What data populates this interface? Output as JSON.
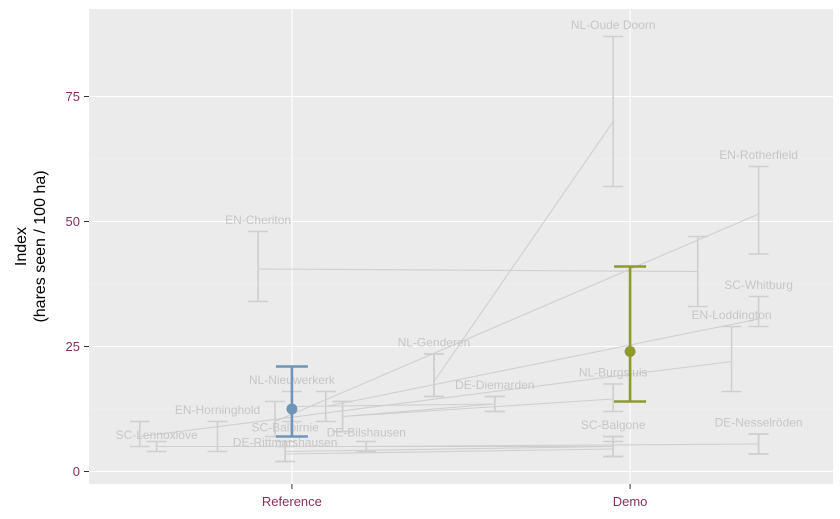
{
  "chart_data": {
    "type": "scatter",
    "title": "",
    "xlabel": "",
    "ylabel": [
      "Index",
      "(hares seen / 100 ha)"
    ],
    "categories": [
      "Reference",
      "Demo"
    ],
    "ylim": [
      -2.5,
      92.5
    ],
    "yticks": [
      0,
      25,
      50,
      75
    ],
    "grid": true,
    "legend": "none",
    "colors": {
      "panel": "#ebebeb",
      "grid_major": "#ffffff",
      "grid_minor": "#f4f4f4",
      "site": "#cfcfcf",
      "site_label": "#c6c6c6",
      "reference_mean": "#6f96b8",
      "demo_mean": "#8f9a2e",
      "tick_label": "#8b2f5e"
    },
    "sites": [
      {
        "name": "NL-Oude Doorn",
        "reference": {
          "x": 1.42,
          "y": 18,
          "lo": 15,
          "hi": 23.5
        },
        "demo": {
          "x": 1.95,
          "y": 70,
          "lo": 57,
          "hi": 87
        }
      },
      {
        "name": "EN-Rotherfield",
        "reference": {
          "x": 0.95,
          "y": 10,
          "lo": 7,
          "hi": 14
        },
        "demo": {
          "x": 2.38,
          "y": 51.5,
          "lo": 43.5,
          "hi": 61
        }
      },
      {
        "name": "EN-Cheriton",
        "reference": {
          "x": 0.9,
          "y": 40.5,
          "lo": 34,
          "hi": 48
        },
        "demo": {
          "x": 2.2,
          "y": 40,
          "lo": 33,
          "hi": 47
        }
      },
      {
        "name": "SC-Whitburg",
        "reference": {
          "x": 1.1,
          "y": 13,
          "lo": 10,
          "hi": 16
        },
        "demo": {
          "x": 2.38,
          "y": 30.5,
          "lo": 29,
          "hi": 35
        }
      },
      {
        "name": "EN-Loddington",
        "reference": {
          "x": 0.55,
          "y": 7,
          "lo": 5,
          "hi": 10
        },
        "demo": {
          "x": 2.3,
          "y": 22,
          "lo": 16,
          "hi": 29
        }
      },
      {
        "name": "NL-Genderen",
        "reference": {
          "x": 1.42,
          "y": 18,
          "lo": 15,
          "hi": 23.5
        },
        "demo": null
      },
      {
        "name": "NL-Nieuwerkerk",
        "reference": {
          "x": 1.0,
          "y": 13,
          "lo": 10,
          "hi": 16
        },
        "demo": {
          "x": 1.6,
          "y": 13.5,
          "lo": 12,
          "hi": 15
        }
      },
      {
        "name": "DE-Diemarden",
        "reference": {
          "x": 1.15,
          "y": 11,
          "lo": 8,
          "hi": 14
        },
        "demo": {
          "x": 1.6,
          "y": 13.5,
          "lo": 12,
          "hi": 15
        }
      },
      {
        "name": "NL-Burgsluis",
        "reference": {
          "x": 1.15,
          "y": 11,
          "lo": 8,
          "hi": 14
        },
        "demo": {
          "x": 1.95,
          "y": 14.5,
          "lo": 12,
          "hi": 17.5
        }
      },
      {
        "name": "EN-Horninghold",
        "reference": {
          "x": 0.78,
          "y": 7,
          "lo": 4,
          "hi": 10
        },
        "demo": null
      },
      {
        "name": "SC-Balbirnie",
        "reference": {
          "x": 0.98,
          "y": 4,
          "lo": 2,
          "hi": 6
        },
        "demo": {
          "x": 1.95,
          "y": 5,
          "lo": 3,
          "hi": 7
        }
      },
      {
        "name": "SC-Lennoxlove",
        "reference": {
          "x": 0.6,
          "y": 5,
          "lo": 4,
          "hi": 6
        },
        "demo": {
          "x": 1.95,
          "y": 5,
          "lo": 3,
          "hi": 7
        }
      },
      {
        "name": "DE-Bilshausen",
        "reference": {
          "x": 1.22,
          "y": 5,
          "lo": 4,
          "hi": 6
        },
        "demo": {
          "x": 2.38,
          "y": 5.5,
          "lo": 3.5,
          "hi": 7.5
        }
      },
      {
        "name": "DE-Rittmarshausen",
        "reference": {
          "x": 0.98,
          "y": 3.5,
          "lo": 2,
          "hi": 5
        },
        "demo": {
          "x": 1.95,
          "y": 4.5,
          "lo": 3,
          "hi": 6
        }
      },
      {
        "name": "SC-Balgone",
        "reference": null,
        "demo": {
          "x": 1.95,
          "y": 5,
          "lo": 3,
          "hi": 7
        }
      },
      {
        "name": "DE-Nesselröden",
        "reference": null,
        "demo": {
          "x": 2.38,
          "y": 5.5,
          "lo": 3.5,
          "hi": 7.5
        }
      }
    ],
    "means": [
      {
        "group": "Reference",
        "x": 1,
        "y": 12.5,
        "lo": 7,
        "hi": 21
      },
      {
        "group": "Demo",
        "x": 2,
        "y": 24,
        "lo": 14,
        "hi": 41
      }
    ]
  },
  "site_labels": [
    {
      "text": "NL-Oude Doorn",
      "x": 1.95,
      "y": 88.5
    },
    {
      "text": "EN-Rotherfield",
      "x": 2.38,
      "y": 62.5
    },
    {
      "text": "EN-Cheriton",
      "x": 0.9,
      "y": 49.5
    },
    {
      "text": "SC-Whitburg",
      "x": 2.38,
      "y": 36.5
    },
    {
      "text": "EN-Loddington",
      "x": 2.3,
      "y": 30.5
    },
    {
      "text": "NL-Genderen",
      "x": 1.42,
      "y": 25
    },
    {
      "text": "NL-Nieuwerkerk",
      "x": 1.0,
      "y": 17.5
    },
    {
      "text": "DE-Diemarden",
      "x": 1.6,
      "y": 16.5
    },
    {
      "text": "NL-Burgsluis",
      "x": 1.95,
      "y": 19
    },
    {
      "text": "EN-Horninghold",
      "x": 0.78,
      "y": 11.5
    },
    {
      "text": "SC-Balbirnie",
      "x": 0.98,
      "y": 8
    },
    {
      "text": "SC-Lennoxlove",
      "x": 0.6,
      "y": 6.5
    },
    {
      "text": "DE-Bilshausen",
      "x": 1.22,
      "y": 7
    },
    {
      "text": "DE-Rittmarshausen",
      "x": 0.98,
      "y": 5
    },
    {
      "text": "SC-Balgone",
      "x": 1.95,
      "y": 8.5
    },
    {
      "text": "DE-Nesselröden",
      "x": 2.38,
      "y": 9
    }
  ]
}
